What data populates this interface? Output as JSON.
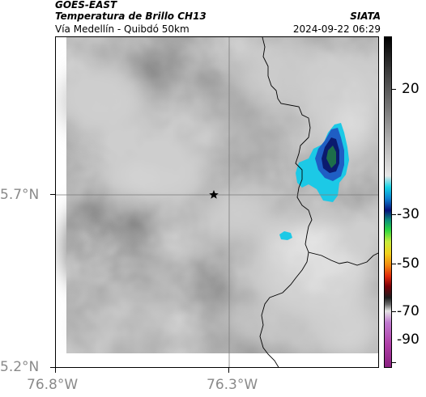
{
  "header": {
    "satellite": "GOES-EAST",
    "product": "Temperatura de Brillo CH13",
    "region": "Vía Medellín - Quibdó 50km",
    "organization": "SIATA",
    "timestamp": "2024-09-22 06:29"
  },
  "axes": {
    "lat_labels": [
      "5.7°N",
      "5.2°N"
    ],
    "lon_labels": [
      "76.8°W",
      "76.3°W"
    ]
  },
  "colorbar": {
    "labels": [
      "20",
      "-30",
      "-50",
      "-70",
      "-90"
    ]
  },
  "colors": {
    "cold_cloud_outer": "#1cc9e6",
    "cold_cloud_mid": "#1f5ec4",
    "cold_cloud_core": "#1d6e4a",
    "background_gray": "#9a9a9a"
  },
  "markers": {
    "station_icon": "star-icon"
  }
}
